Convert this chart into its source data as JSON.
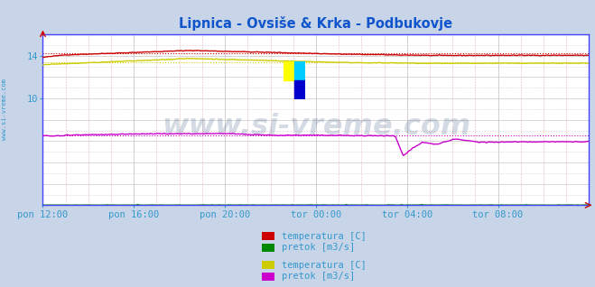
{
  "title": "Lipnica - Ovsiše & Krka - Podbukovje",
  "title_color": "#1155cc",
  "title_fontsize": 10.5,
  "title_bold": true,
  "bg_color": "#c8d4e8",
  "plot_bg_color": "#ffffff",
  "watermark_text": "www.si-vreme.com",
  "watermark_color": "#1a3a6a",
  "watermark_alpha": 0.18,
  "sidebar_text": "www.si-vreme.com",
  "sidebar_color": "#3399cc",
  "tick_color": "#3399cc",
  "tick_fontsize": 7.5,
  "n_points": 289,
  "ylim": [
    0,
    16
  ],
  "xtick_labels": [
    "pon 12:00",
    "pon 16:00",
    "pon 20:00",
    "tor 00:00",
    "tor 04:00",
    "tor 08:00"
  ],
  "xtick_positions": [
    0.0,
    0.1667,
    0.3333,
    0.5,
    0.6667,
    0.8333
  ],
  "ytick_vals": [
    10,
    14
  ],
  "series": {
    "lipnica_temp_color": "#cc0000",
    "lipnica_pretok_color": "#008800",
    "krka_temp_color": "#cccc00",
    "krka_pretok_color": "#cc00cc"
  },
  "dashed_lipnica_temp": 14.25,
  "dashed_krka_temp": 13.35,
  "dashed_krka_pretok": 6.55,
  "legend_labels": [
    [
      "temperatura [C]",
      "#cc0000"
    ],
    [
      "pretok [m3/s]",
      "#008800"
    ],
    [
      "temperatura [C]",
      "#cccc00"
    ],
    [
      "pretok [m3/s]",
      "#cc00cc"
    ]
  ],
  "legend_text_color": "#3399cc",
  "legend_fontsize": 7.5,
  "axis_color": "#4444ff",
  "grid_major_color": "#c8c8c8",
  "grid_minor_v_color": "#e8b8b8",
  "grid_minor_h_color": "#e0d0e0"
}
